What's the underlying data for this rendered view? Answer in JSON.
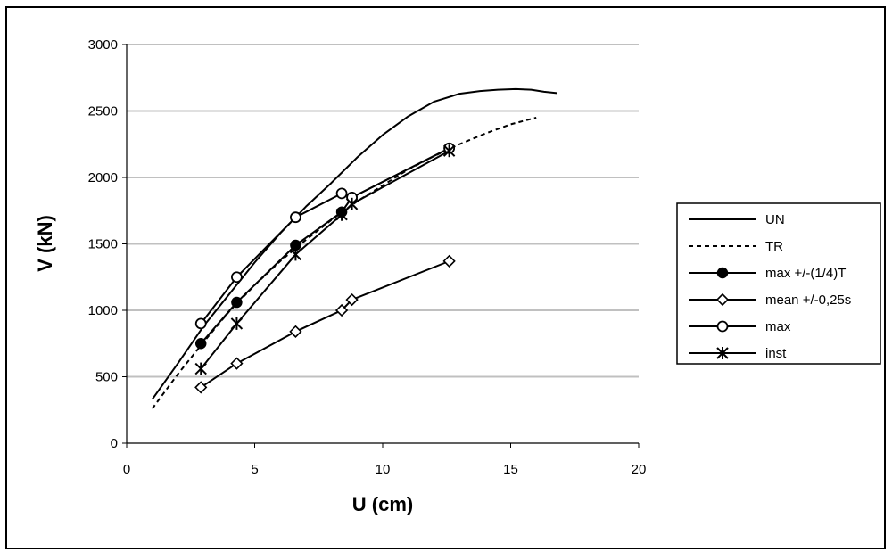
{
  "chart_data": {
    "type": "line",
    "xlabel": "U (cm)",
    "ylabel": "V (kN)",
    "xlim": [
      0,
      20
    ],
    "ylim": [
      0,
      3000
    ],
    "xticks": [
      0,
      5,
      10,
      15,
      20
    ],
    "yticks": [
      0,
      500,
      1000,
      1500,
      2000,
      2500,
      3000
    ],
    "grid": "horizontal",
    "legend_position": "right",
    "series": [
      {
        "name": "UN",
        "style": "solid",
        "marker": "none",
        "x": [
          1.0,
          2.0,
          3.0,
          4.0,
          5.0,
          6.0,
          7.0,
          8.0,
          9.0,
          10.0,
          11.0,
          12.0,
          13.0,
          13.8,
          14.5,
          15.2,
          15.8,
          16.3,
          16.8
        ],
        "y": [
          330,
          600,
          880,
          1120,
          1360,
          1580,
          1780,
          1960,
          2150,
          2320,
          2460,
          2570,
          2630,
          2650,
          2660,
          2665,
          2660,
          2645,
          2635
        ]
      },
      {
        "name": "TR",
        "style": "dashed",
        "marker": "none",
        "x": [
          1.0,
          2.0,
          3.0,
          4.0,
          5.0,
          6.0,
          7.0,
          8.0,
          9.0,
          10.0,
          11.0,
          12.0,
          13.0,
          14.0,
          15.0,
          16.0
        ],
        "y": [
          260,
          520,
          760,
          990,
          1190,
          1370,
          1530,
          1680,
          1820,
          1940,
          2060,
          2160,
          2250,
          2330,
          2400,
          2450
        ]
      },
      {
        "name": "max +/-(1/4)T",
        "style": "solid",
        "marker": "filled-circle",
        "x": [
          2.9,
          4.3,
          6.6,
          8.4,
          8.8,
          12.6
        ],
        "y": [
          750,
          1060,
          1490,
          1740,
          1850,
          2220
        ]
      },
      {
        "name": "mean +/-0,25s",
        "style": "solid",
        "marker": "diamond",
        "x": [
          2.9,
          4.3,
          6.6,
          8.4,
          8.8,
          12.6
        ],
        "y": [
          420,
          600,
          840,
          1000,
          1080,
          1370
        ]
      },
      {
        "name": "max",
        "style": "solid",
        "marker": "open-circle",
        "x": [
          2.9,
          4.3,
          6.6,
          8.4,
          8.8,
          12.6
        ],
        "y": [
          900,
          1250,
          1700,
          1880,
          1850,
          2220
        ]
      },
      {
        "name": "inst",
        "style": "solid",
        "marker": "star",
        "x": [
          2.9,
          4.3,
          6.6,
          8.4,
          8.8,
          12.6
        ],
        "y": [
          560,
          900,
          1420,
          1720,
          1800,
          2200
        ]
      }
    ]
  }
}
